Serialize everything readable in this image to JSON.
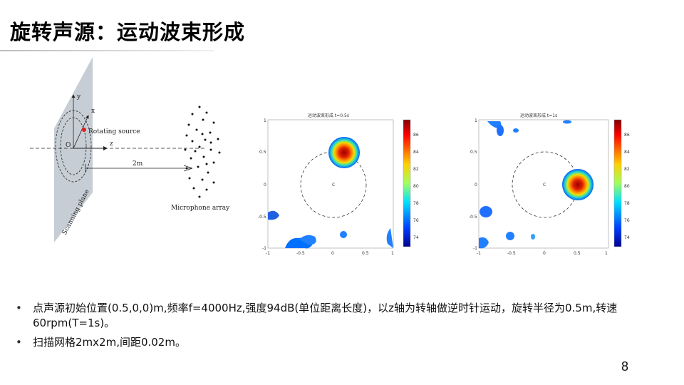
{
  "slide": {
    "title": "旋转声源：运动波束形成",
    "page_number": "8",
    "bullets": [
      "点声源初始位置(0.5,0,0)m,频率f=4000Hz,强度94dB(单位距离长度)，以z轴为转轴做逆时针运动，旋转半径为0.5m,转速60rpm(T=1s)。",
      "扫描网格2mx2m,间距0.02m。"
    ]
  },
  "diagram": {
    "axis_y": "y",
    "axis_x": "x",
    "axis_z": "z",
    "origin": "O",
    "source_label": "Rotating source",
    "distance_label": "2m",
    "array_label": "Microphone array",
    "plane_label": "Scanning plane"
  },
  "plots": [
    {
      "title": "运动波束形成 t=0.5s",
      "x_ticks": [
        "-1",
        "-0.5",
        "0",
        "0.5",
        "1"
      ],
      "y_ticks": [
        "1",
        "0.5",
        "0",
        "-0.5",
        "-1"
      ],
      "colorbar_ticks": [
        "86",
        "84",
        "82",
        "80",
        "78",
        "76",
        "74"
      ],
      "center_label": "C"
    },
    {
      "title": "运动波束形成 t=1s",
      "x_ticks": [
        "-1",
        "-0.5",
        "0",
        "0.5",
        "1"
      ],
      "y_ticks": [
        "1",
        "0.5",
        "0",
        "-0.5",
        "-1"
      ],
      "colorbar_ticks": [
        "86",
        "84",
        "82",
        "80",
        "78",
        "76",
        "74"
      ],
      "center_label": "C"
    }
  ],
  "colors": {
    "jet_red": "#b40000",
    "jet_yellow": "#f0e000",
    "jet_cyan": "#00e0e0",
    "jet_blue": "#0050ff",
    "plane_gray": "#b3bcc6"
  }
}
